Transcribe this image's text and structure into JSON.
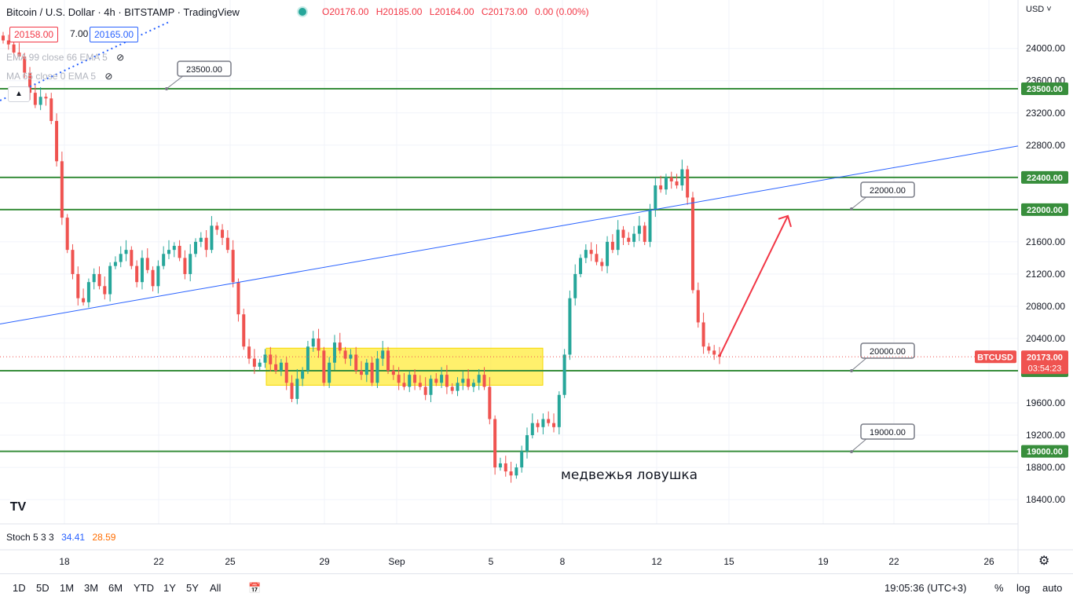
{
  "header": {
    "title": "Bitcoin / U.S. Dollar · 4h · BITSTAMP · TradingView",
    "ohlc": {
      "open": "O20176.00",
      "high": "H20185.00",
      "low": "L20164.00",
      "close": "C20173.00",
      "change": "0.00 (0.00%)"
    },
    "sell_price": "20158.00",
    "spread": "7.00",
    "buy_price": "20165.00",
    "indicators": [
      "EMA 99 close 66 EMA 5",
      "MA 65 close 0 EMA 5"
    ],
    "collapse_icon": "chevron-up-icon"
  },
  "axis": {
    "currency": "USD"
  },
  "chart_data": {
    "type": "candlestick",
    "symbol": "BTCUSD",
    "timeframe": "4h",
    "ylim": [
      18150,
      24400
    ],
    "y_ticks": [
      18400,
      18800,
      19200,
      19600,
      20000,
      20400,
      20800,
      21200,
      21600,
      22000,
      22400,
      22800,
      23200,
      23600,
      24000
    ],
    "x_ticks": [
      "18",
      "22",
      "25",
      "29",
      "Sep",
      "5",
      "8",
      "12",
      "15",
      "19",
      "22",
      "26"
    ],
    "horizontal_levels": [
      23500,
      22400,
      22000,
      20000,
      19000
    ],
    "level_labels": [
      "23500.00",
      "22400.00",
      "22000.00",
      "20000.00",
      "19000.00"
    ],
    "callouts": [
      "23500.00",
      "22000.00",
      "20000.00",
      "19000.00"
    ],
    "last_price": "20173.00",
    "countdown": "03:54:23",
    "symbol_tag": "BTCUSD",
    "trendline": {
      "from": [
        "Aug 15",
        20580
      ],
      "to": [
        "Sep 26+",
        22790
      ]
    },
    "consolidation_zone": {
      "from": "Aug 27",
      "to": "Sep 6",
      "low": 19820,
      "high": 20280
    },
    "forecast_arrow": {
      "from": 20180,
      "to": 22000
    },
    "annotation": "медвежья ловушка",
    "closes": [
      24100,
      24050,
      23950,
      23900,
      23700,
      23450,
      23300,
      23400,
      23380,
      23100,
      22600,
      21900,
      21500,
      21200,
      20900,
      20850,
      21100,
      21200,
      21050,
      20950,
      21300,
      21350,
      21450,
      21500,
      21300,
      21100,
      21400,
      21250,
      21050,
      21300,
      21450,
      21500,
      21550,
      21400,
      21200,
      21450,
      21600,
      21650,
      21500,
      21800,
      21750,
      21650,
      21500,
      21100,
      20700,
      20300,
      20150,
      20050,
      20100,
      20200,
      20080,
      20000,
      20100,
      19850,
      19650,
      19900,
      20000,
      20300,
      20400,
      20250,
      19850,
      20100,
      20350,
      20250,
      20150,
      20200,
      20000,
      19950,
      20100,
      19850,
      20150,
      20250,
      20000,
      19950,
      19850,
      19800,
      19950,
      19850,
      19800,
      19700,
      19900,
      19850,
      19950,
      19800,
      19750,
      19850,
      19900,
      19800,
      19850,
      19950,
      19800,
      19400,
      18800,
      18850,
      18750,
      18700,
      18800,
      19000,
      19200,
      19350,
      19300,
      19400,
      19350,
      19300,
      19700,
      20200,
      20900,
      21200,
      21400,
      21500,
      21450,
      21350,
      21300,
      21600,
      21500,
      21750,
      21650,
      21600,
      21700,
      21800,
      21600,
      22000,
      22300,
      22250,
      22400,
      22350,
      22300,
      22500,
      22150,
      21000,
      20600,
      20300,
      20250,
      20200,
      20173
    ]
  },
  "bottom": {
    "ranges": [
      "1D",
      "5D",
      "1M",
      "3M",
      "6M",
      "YTD",
      "1Y",
      "5Y",
      "All"
    ],
    "compare_icon": "calendar-range-icon",
    "clock": "19:05:36 (UTC+3)",
    "percent": "%",
    "log": "log",
    "auto": "auto",
    "settings_icon": "gear-icon"
  },
  "stoch": {
    "label": "Stoch 5 3 3",
    "k": "34.41",
    "d": "28.59"
  },
  "logo": "TV"
}
